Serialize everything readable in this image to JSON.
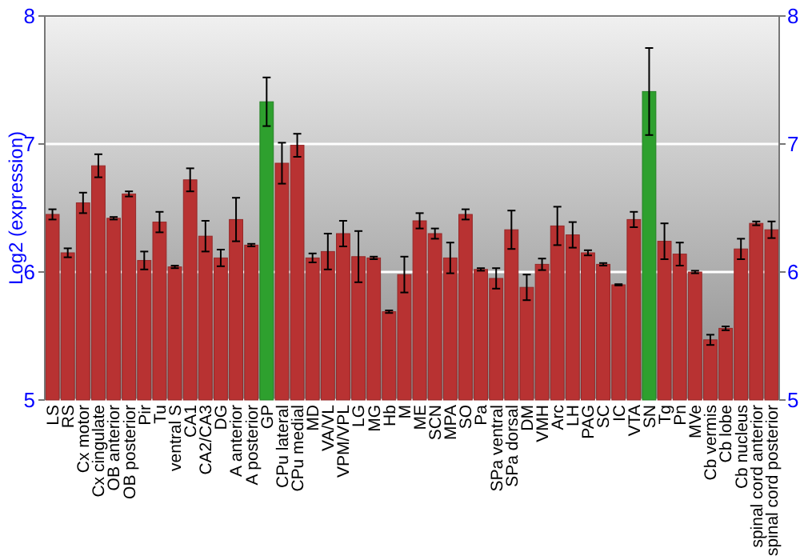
{
  "chart_data": {
    "type": "bar",
    "ylabel": "Log2 (expression)",
    "categories": [
      "LS",
      "RS",
      "Cx motor",
      "Cx cingulate",
      "OB anterior",
      "OB posterior",
      "Pir",
      "Tu",
      "ventral S",
      "CA1",
      "CA2/CA3",
      "DG",
      "A anterior",
      "A posterior",
      "GP",
      "CPu lateral",
      "CPu medial",
      "MD",
      "VA/VL",
      "VPM/VPL",
      "LG",
      "MG",
      "Hb",
      "M",
      "ME",
      "SCN",
      "MPA",
      "SO",
      "Pa",
      "SPa ventral",
      "SPa dorsal",
      "DM",
      "VMH",
      "Arc",
      "LH",
      "PAG",
      "SC",
      "IC",
      "VTA",
      "SN",
      "Tg",
      "Pn",
      "MVe",
      "Cb vermis",
      "Cb lobe",
      "Cb nucleus",
      "spinal cord anterior",
      "spinal cord posterior"
    ],
    "values": [
      6.45,
      6.15,
      6.54,
      6.83,
      6.42,
      6.61,
      6.09,
      6.39,
      6.04,
      6.72,
      6.28,
      6.11,
      6.41,
      6.21,
      7.33,
      6.85,
      6.99,
      6.11,
      6.16,
      6.3,
      6.12,
      6.11,
      5.69,
      5.98,
      6.4,
      6.3,
      6.11,
      6.45,
      6.02,
      5.95,
      6.33,
      5.88,
      6.06,
      6.36,
      6.29,
      6.15,
      6.06,
      5.9,
      6.41,
      7.41,
      6.24,
      6.14,
      6.0,
      5.47,
      5.56,
      6.18,
      6.38,
      6.33
    ],
    "errors": [
      0.04,
      0.035,
      0.08,
      0.09,
      0.01,
      0.02,
      0.07,
      0.08,
      0.01,
      0.09,
      0.12,
      0.065,
      0.17,
      0.01,
      0.19,
      0.16,
      0.09,
      0.035,
      0.14,
      0.1,
      0.2,
      0.01,
      0.01,
      0.14,
      0.06,
      0.04,
      0.12,
      0.04,
      0.01,
      0.08,
      0.15,
      0.1,
      0.045,
      0.15,
      0.1,
      0.02,
      0.01,
      0.005,
      0.06,
      0.34,
      0.14,
      0.09,
      0.01,
      0.04,
      0.015,
      0.08,
      0.015,
      0.065
    ],
    "colors": [
      "#b83232",
      "#b83232",
      "#b83232",
      "#b83232",
      "#b83232",
      "#b83232",
      "#b83232",
      "#b83232",
      "#b83232",
      "#b83232",
      "#b83232",
      "#b83232",
      "#b83232",
      "#b83232",
      "#2ea02e",
      "#b83232",
      "#b83232",
      "#b83232",
      "#b83232",
      "#b83232",
      "#b83232",
      "#b83232",
      "#b83232",
      "#b83232",
      "#b83232",
      "#b83232",
      "#b83232",
      "#b83232",
      "#b83232",
      "#b83232",
      "#b83232",
      "#b83232",
      "#b83232",
      "#b83232",
      "#b83232",
      "#b83232",
      "#b83232",
      "#b83232",
      "#b83232",
      "#2ea02e",
      "#b83232",
      "#b83232",
      "#b83232",
      "#b83232",
      "#b83232",
      "#b83232",
      "#b83232",
      "#b83232"
    ],
    "ylim": [
      5,
      8
    ],
    "yticks": [
      5,
      6,
      7,
      8
    ],
    "y2lim": [
      5,
      8
    ],
    "y2ticks": [
      5,
      6,
      7,
      8
    ],
    "grid": "y"
  }
}
